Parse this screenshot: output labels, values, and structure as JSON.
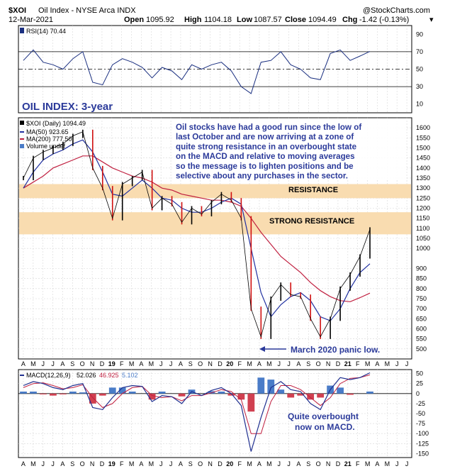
{
  "header": {
    "symbol": "$XOI",
    "name": "Oil Index - NYSE Arca INDX",
    "brand": "@StockCharts.com",
    "date": "12-Mar-2021",
    "open_label": "Open",
    "open": "1095.92",
    "high_label": "High",
    "high": "1104.18",
    "low_label": "Low",
    "low": "1087.57",
    "close_label": "Close",
    "close": "1094.49",
    "chg_label": "Chg",
    "chg": "-1.42 (-0.13%)",
    "chg_marker": "▾"
  },
  "rsi_panel": {
    "legend": "RSI(14) 70.44",
    "ticks": [
      "90",
      "70",
      "50",
      "30",
      "10"
    ]
  },
  "price_panel": {
    "legend": {
      "price": "$XOI (Daily) 1094.49",
      "ma50": "MA(50) 923.65",
      "ma200": "MA(200) 777.50",
      "volume": "Volume undef"
    },
    "annotations": {
      "title": "OIL INDEX: 3-year",
      "comment_lines": [
        "Oil stocks have had a good run since the low of",
        "last October and are now arriving at a zone of",
        "quite strong resistance in an overbought state",
        "on the MACD and relative to moving averages",
        "so the message is to lighten positions and be",
        "selective about any purchases in the sector."
      ],
      "resistance": "RESISTANCE",
      "strong_resistance": "STRONG RESISTANCE",
      "panic_low": "March 2020 panic low."
    },
    "ticks": [
      "1600",
      "1550",
      "1500",
      "1450",
      "1400",
      "1350",
      "1300",
      "1250",
      "1200",
      "1150",
      "1100",
      "1050",
      "1000",
      "900",
      "850",
      "800",
      "750",
      "700",
      "650",
      "600",
      "550",
      "500"
    ]
  },
  "macd_panel": {
    "legend_label": "MACD(12,26,9)",
    "legend_macd": "52.026",
    "legend_signal": "46.925",
    "legend_hist": "5.102",
    "annotation_lines": [
      "Quite overbought",
      "now on MACD."
    ],
    "ticks": [
      "50",
      "25",
      "0",
      "-25",
      "-50",
      "-75",
      "-100",
      "-125",
      "-150"
    ]
  },
  "x_axis": {
    "labels": [
      "A",
      "M",
      "J",
      "J",
      "A",
      "S",
      "O",
      "N",
      "D",
      "19",
      "F",
      "M",
      "A",
      "M",
      "J",
      "J",
      "A",
      "S",
      "O",
      "N",
      "D",
      "20",
      "F",
      "M",
      "A",
      "M",
      "J",
      "J",
      "A",
      "S",
      "O",
      "N",
      "D",
      "21",
      "F",
      "M",
      "A",
      "M",
      "J",
      "J"
    ]
  },
  "colors": {
    "price": "#000000",
    "price_up": "#000000",
    "price_down": "#d01010",
    "ma50": "#2030a0",
    "ma200": "#c02040",
    "zone": "#f9dcb0",
    "annotation": "#2b3a9a",
    "hist_pos": "#4a7cc8",
    "hist_neg": "#d04050",
    "macd_line": "#203090",
    "signal_line": "#c02040",
    "rsi_line": "#1a2f80",
    "rsi_fill_high": "#d02090",
    "rsi_fill_low": "#d02090"
  },
  "chart_data": [
    {
      "type": "line",
      "name": "RSI(14)",
      "ylim": [
        0,
        100
      ],
      "reference_lines": [
        70,
        50,
        30
      ],
      "x": [
        "2018-04",
        "2018-05",
        "2018-06",
        "2018-07",
        "2018-08",
        "2018-09",
        "2018-10",
        "2018-11",
        "2018-12",
        "2019-01",
        "2019-02",
        "2019-03",
        "2019-04",
        "2019-05",
        "2019-06",
        "2019-07",
        "2019-08",
        "2019-09",
        "2019-10",
        "2019-11",
        "2019-12",
        "2020-01",
        "2020-02",
        "2020-03",
        "2020-04",
        "2020-05",
        "2020-06",
        "2020-07",
        "2020-08",
        "2020-09",
        "2020-10",
        "2020-11",
        "2020-12",
        "2021-01",
        "2021-02",
        "2021-03"
      ],
      "y": [
        60,
        72,
        58,
        55,
        50,
        62,
        70,
        35,
        32,
        55,
        62,
        58,
        52,
        40,
        52,
        48,
        38,
        55,
        50,
        55,
        58,
        48,
        30,
        22,
        58,
        60,
        70,
        55,
        50,
        40,
        38,
        68,
        72,
        60,
        65,
        70.44
      ]
    },
    {
      "type": "line",
      "ylim": [
        450,
        1650
      ],
      "x": [
        "2018-04",
        "2018-05",
        "2018-06",
        "2018-07",
        "2018-08",
        "2018-09",
        "2018-10",
        "2018-11",
        "2018-12",
        "2019-01",
        "2019-02",
        "2019-03",
        "2019-04",
        "2019-05",
        "2019-06",
        "2019-07",
        "2019-08",
        "2019-09",
        "2019-10",
        "2019-11",
        "2019-12",
        "2020-01",
        "2020-02",
        "2020-03",
        "2020-04",
        "2020-05",
        "2020-06",
        "2020-07",
        "2020-08",
        "2020-09",
        "2020-10",
        "2020-11",
        "2020-12",
        "2021-01",
        "2021-02",
        "2021-03"
      ],
      "series": [
        {
          "name": "$XOI (Daily)",
          "values": [
            1350,
            1450,
            1480,
            1500,
            1520,
            1560,
            1580,
            1400,
            1300,
            1150,
            1320,
            1350,
            1380,
            1200,
            1250,
            1220,
            1130,
            1200,
            1170,
            1230,
            1270,
            1240,
            1150,
            700,
            560,
            750,
            820,
            770,
            760,
            650,
            560,
            650,
            800,
            870,
            960,
            1094.49
          ]
        },
        {
          "name": "MA(50)",
          "values": [
            1300,
            1380,
            1440,
            1470,
            1490,
            1520,
            1540,
            1480,
            1380,
            1270,
            1260,
            1300,
            1340,
            1300,
            1250,
            1240,
            1200,
            1180,
            1180,
            1200,
            1230,
            1250,
            1220,
            1000,
            780,
            660,
            720,
            760,
            780,
            740,
            660,
            640,
            700,
            800,
            880,
            923.65
          ]
        },
        {
          "name": "MA(200)",
          "values": [
            1300,
            1330,
            1360,
            1400,
            1420,
            1440,
            1460,
            1460,
            1430,
            1400,
            1380,
            1360,
            1350,
            1330,
            1300,
            1290,
            1270,
            1260,
            1250,
            1240,
            1240,
            1230,
            1210,
            1150,
            1080,
            1020,
            960,
            920,
            880,
            830,
            790,
            760,
            740,
            735,
            755,
            777.5
          ]
        }
      ],
      "zones": [
        {
          "label": "RESISTANCE",
          "from": 1250,
          "to": 1320
        },
        {
          "label": "STRONG RESISTANCE",
          "from": 1070,
          "to": 1180
        }
      ],
      "annotations": [
        {
          "text": "March 2020 panic low.",
          "x": "2020-03",
          "y": 470
        }
      ]
    },
    {
      "type": "line",
      "ylim": [
        -160,
        60
      ],
      "x": [
        "2018-04",
        "2018-05",
        "2018-06",
        "2018-07",
        "2018-08",
        "2018-09",
        "2018-10",
        "2018-11",
        "2018-12",
        "2019-01",
        "2019-02",
        "2019-03",
        "2019-04",
        "2019-05",
        "2019-06",
        "2019-07",
        "2019-08",
        "2019-09",
        "2019-10",
        "2019-11",
        "2019-12",
        "2020-01",
        "2020-02",
        "2020-03",
        "2020-04",
        "2020-05",
        "2020-06",
        "2020-07",
        "2020-08",
        "2020-09",
        "2020-10",
        "2020-11",
        "2020-12",
        "2021-01",
        "2021-02",
        "2021-03"
      ],
      "series": [
        {
          "name": "MACD(12,26,9)",
          "values": [
            20,
            30,
            25,
            15,
            10,
            20,
            25,
            -35,
            -40,
            -10,
            15,
            20,
            18,
            -20,
            -5,
            -8,
            -25,
            5,
            -5,
            8,
            15,
            0,
            -30,
            -145,
            -60,
            15,
            30,
            10,
            5,
            -25,
            -40,
            10,
            40,
            35,
            40,
            52.026
          ]
        },
        {
          "name": "Signal",
          "values": [
            15,
            25,
            27,
            20,
            12,
            15,
            22,
            -10,
            -35,
            -25,
            0,
            15,
            18,
            -5,
            -10,
            -8,
            -18,
            -5,
            -5,
            2,
            10,
            5,
            -15,
            -100,
            -100,
            -20,
            20,
            20,
            10,
            -10,
            -30,
            -10,
            25,
            38,
            40,
            46.925
          ]
        },
        {
          "name": "Histogram",
          "values": [
            5,
            5,
            -2,
            -5,
            -2,
            5,
            3,
            -25,
            -5,
            15,
            15,
            5,
            0,
            -15,
            5,
            0,
            -7,
            10,
            0,
            6,
            5,
            -5,
            -15,
            -45,
            40,
            35,
            10,
            -10,
            -5,
            -15,
            -10,
            20,
            15,
            -3,
            0,
            5.102
          ]
        }
      ]
    }
  ]
}
